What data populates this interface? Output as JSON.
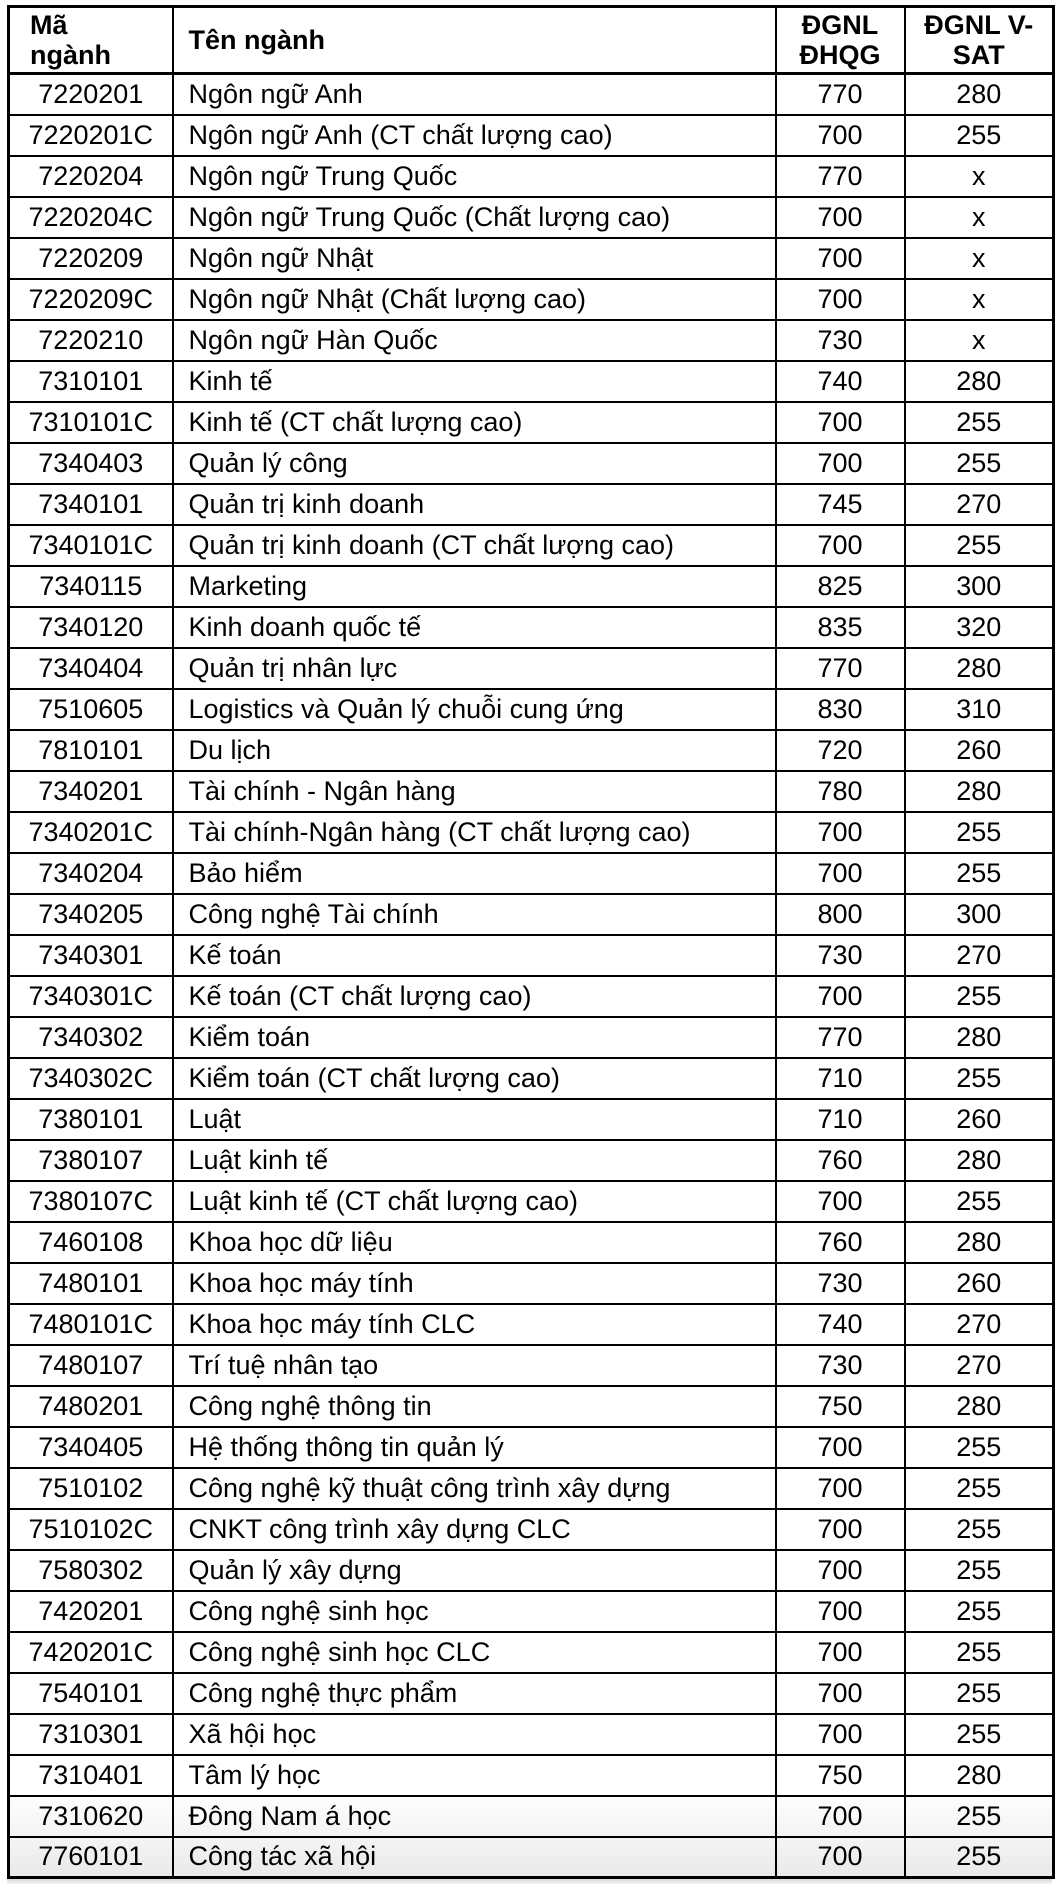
{
  "table": {
    "columns": [
      {
        "key": "code",
        "label": "Mã\nngành"
      },
      {
        "key": "name",
        "label": "Tên ngành"
      },
      {
        "key": "dgnl_dhqg",
        "label": "ĐGNL\nĐHQG"
      },
      {
        "key": "dgnl_vsat",
        "label": "ĐGNL V-\nSAT"
      }
    ],
    "rows": [
      [
        "7220201",
        "Ngôn ngữ Anh",
        "770",
        "280"
      ],
      [
        "7220201C",
        "Ngôn ngữ Anh (CT chất lượng cao)",
        "700",
        "255"
      ],
      [
        "7220204",
        "Ngôn ngữ Trung Quốc",
        "770",
        "x"
      ],
      [
        "7220204C",
        "Ngôn ngữ Trung Quốc (Chất lượng cao)",
        "700",
        "x"
      ],
      [
        "7220209",
        "Ngôn ngữ Nhật",
        "700",
        "x"
      ],
      [
        "7220209C",
        "Ngôn ngữ Nhật  (Chất lượng cao)",
        "700",
        "x"
      ],
      [
        "7220210",
        "Ngôn ngữ Hàn Quốc",
        "730",
        "x"
      ],
      [
        "7310101",
        "Kinh tế",
        "740",
        "280"
      ],
      [
        "7310101C",
        "Kinh tế (CT chất lượng cao)",
        "700",
        "255"
      ],
      [
        "7340403",
        "Quản lý công",
        "700",
        "255"
      ],
      [
        "7340101",
        "Quản trị kinh doanh",
        "745",
        "270"
      ],
      [
        "7340101C",
        "Quản trị kinh doanh (CT chất lượng cao)",
        "700",
        "255"
      ],
      [
        "7340115",
        "Marketing",
        "825",
        "300"
      ],
      [
        "7340120",
        "Kinh doanh quốc tế",
        "835",
        "320"
      ],
      [
        "7340404",
        "Quản trị nhân lực",
        "770",
        "280"
      ],
      [
        "7510605",
        "Logistics và Quản lý chuỗi cung ứng",
        "830",
        "310"
      ],
      [
        "7810101",
        "Du lịch",
        "720",
        "260"
      ],
      [
        "7340201",
        "Tài chính - Ngân hàng",
        "780",
        "280"
      ],
      [
        "7340201C",
        "Tài chính-Ngân hàng (CT chất lượng cao)",
        "700",
        "255"
      ],
      [
        "7340204",
        "Bảo hiểm",
        "700",
        "255"
      ],
      [
        "7340205",
        "Công nghệ Tài chính",
        "800",
        "300"
      ],
      [
        "7340301",
        "Kế toán",
        "730",
        "270"
      ],
      [
        "7340301C",
        "Kế toán (CT chất lượng cao)",
        "700",
        "255"
      ],
      [
        "7340302",
        "Kiểm toán",
        "770",
        "280"
      ],
      [
        "7340302C",
        "Kiểm toán (CT chất lượng cao)",
        "710",
        "255"
      ],
      [
        "7380101",
        "Luật",
        "710",
        "260"
      ],
      [
        "7380107",
        "Luật kinh tế",
        "760",
        "280"
      ],
      [
        "7380107C",
        "Luật kinh tế (CT chất lượng cao)",
        "700",
        "255"
      ],
      [
        "7460108",
        "Khoa học dữ liệu",
        "760",
        "280"
      ],
      [
        "7480101",
        "Khoa học máy tính",
        "730",
        "260"
      ],
      [
        "7480101C",
        "Khoa học máy tính CLC",
        "740",
        "270"
      ],
      [
        "7480107",
        "Trí tuệ nhân tạo",
        "730",
        "270"
      ],
      [
        "7480201",
        "Công nghệ thông tin",
        "750",
        "280"
      ],
      [
        "7340405",
        "Hệ thống thông tin quản lý",
        "700",
        "255"
      ],
      [
        "7510102",
        "Công nghệ kỹ thuật công trình xây dựng",
        "700",
        "255"
      ],
      [
        "7510102C",
        "CNKT công trình xây dựng CLC",
        "700",
        "255"
      ],
      [
        "7580302",
        "Quản lý xây dựng",
        "700",
        "255"
      ],
      [
        "7420201",
        "Công nghệ sinh học",
        "700",
        "255"
      ],
      [
        "7420201C",
        "Công nghệ sinh học CLC",
        "700",
        "255"
      ],
      [
        "7540101",
        "Công nghệ thực phẩm",
        "700",
        "255"
      ],
      [
        "7310301",
        "Xã hội học",
        "700",
        "255"
      ],
      [
        "7310401",
        "Tâm lý học",
        "750",
        "280"
      ],
      [
        "7310620",
        "Đông Nam á học",
        "700",
        "255"
      ],
      [
        "7760101",
        "Công tác xã hội",
        "700",
        "255"
      ]
    ]
  }
}
